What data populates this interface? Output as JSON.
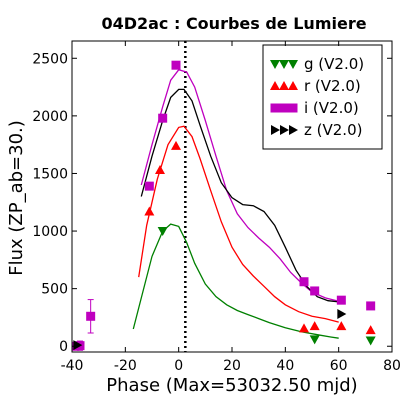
{
  "chart_data": {
    "type": "scatter",
    "title": "04D2ac : Courbes de Lumiere",
    "xlabel": "Phase (Max=53032.50 mjd)",
    "ylabel": "Flux (ZP_ab=30.)",
    "xlim": [
      -40,
      80
    ],
    "ylim": [
      -50,
      2650
    ],
    "xticks": [
      -40,
      -20,
      0,
      20,
      40,
      60,
      80
    ],
    "yticks": [
      0,
      500,
      1000,
      1500,
      2000,
      2500
    ],
    "vline_x": 2.5,
    "legend_position": "top-right",
    "series": [
      {
        "name": "g (V2.0)",
        "color": "#008000",
        "marker": "triangle-down",
        "points": [
          [
            -6,
            1000
          ],
          [
            51,
            60
          ],
          [
            72,
            50
          ]
        ],
        "model": [
          [
            -17,
            150
          ],
          [
            -14,
            420
          ],
          [
            -10,
            780
          ],
          [
            -6,
            1000
          ],
          [
            -3,
            1060
          ],
          [
            0,
            1040
          ],
          [
            3,
            900
          ],
          [
            6,
            720
          ],
          [
            10,
            540
          ],
          [
            14,
            430
          ],
          [
            18,
            360
          ],
          [
            22,
            310
          ],
          [
            26,
            275
          ],
          [
            30,
            240
          ],
          [
            34,
            205
          ],
          [
            40,
            160
          ],
          [
            46,
            125
          ],
          [
            52,
            100
          ],
          [
            57,
            80
          ],
          [
            60,
            70
          ]
        ]
      },
      {
        "name": "r (V2.0)",
        "color": "#ff0000",
        "marker": "triangle-up",
        "points": [
          [
            -11,
            1170
          ],
          [
            -7,
            1530
          ],
          [
            -1,
            1740
          ],
          [
            47,
            155
          ],
          [
            51,
            175
          ],
          [
            61,
            175
          ],
          [
            72,
            140
          ]
        ],
        "model": [
          [
            -15,
            600
          ],
          [
            -12,
            1050
          ],
          [
            -8,
            1450
          ],
          [
            -4,
            1750
          ],
          [
            0,
            1900
          ],
          [
            2,
            1910
          ],
          [
            5,
            1820
          ],
          [
            8,
            1630
          ],
          [
            12,
            1350
          ],
          [
            16,
            1080
          ],
          [
            20,
            860
          ],
          [
            24,
            710
          ],
          [
            28,
            610
          ],
          [
            32,
            520
          ],
          [
            36,
            430
          ],
          [
            40,
            360
          ],
          [
            45,
            300
          ],
          [
            50,
            260
          ],
          [
            55,
            240
          ],
          [
            60,
            210
          ]
        ]
      },
      {
        "name": "i (V2.0)",
        "color": "#bf00bf",
        "marker": "square",
        "points": [
          [
            -39,
            0
          ],
          [
            -37,
            5
          ],
          [
            -33,
            260
          ],
          [
            -11,
            1390
          ],
          [
            -6,
            1980
          ],
          [
            -1,
            2440
          ],
          [
            47,
            560
          ],
          [
            51,
            480
          ],
          [
            61,
            400
          ],
          [
            72,
            350
          ]
        ],
        "error_bars": [
          [
            -33,
            260,
            145
          ],
          [
            -37,
            5,
            40
          ]
        ],
        "model": [
          [
            -14,
            1400
          ],
          [
            -10,
            1750
          ],
          [
            -6,
            2080
          ],
          [
            -3,
            2310
          ],
          [
            0,
            2400
          ],
          [
            3,
            2380
          ],
          [
            6,
            2250
          ],
          [
            10,
            1960
          ],
          [
            14,
            1650
          ],
          [
            18,
            1350
          ],
          [
            22,
            1150
          ],
          [
            26,
            1030
          ],
          [
            30,
            940
          ],
          [
            34,
            860
          ],
          [
            38,
            760
          ],
          [
            42,
            640
          ],
          [
            46,
            550
          ],
          [
            50,
            470
          ],
          [
            55,
            420
          ],
          [
            60,
            390
          ]
        ]
      },
      {
        "name": "z (V2.0)",
        "color": "#000000",
        "marker": "triangle-right",
        "points": [
          [
            -38,
            10
          ],
          [
            61,
            280
          ]
        ],
        "model": [
          [
            -14,
            1300
          ],
          [
            -10,
            1650
          ],
          [
            -6,
            1960
          ],
          [
            -3,
            2160
          ],
          [
            0,
            2230
          ],
          [
            2,
            2230
          ],
          [
            5,
            2130
          ],
          [
            8,
            1920
          ],
          [
            12,
            1650
          ],
          [
            16,
            1420
          ],
          [
            20,
            1290
          ],
          [
            24,
            1230
          ],
          [
            28,
            1220
          ],
          [
            32,
            1170
          ],
          [
            36,
            1050
          ],
          [
            40,
            860
          ],
          [
            44,
            660
          ],
          [
            48,
            520
          ],
          [
            52,
            430
          ],
          [
            56,
            395
          ],
          [
            60,
            385
          ]
        ]
      }
    ]
  }
}
